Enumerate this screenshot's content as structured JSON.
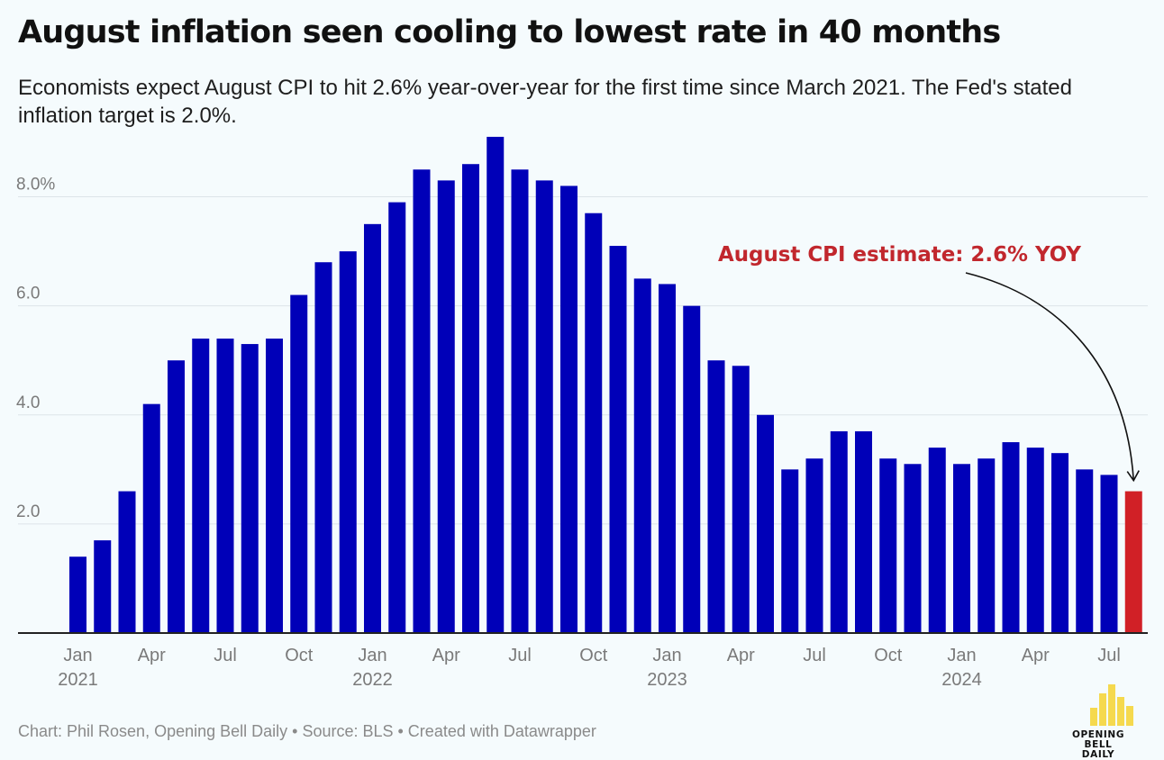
{
  "header": {
    "title": "August inflation seen cooling to lowest rate in 40 months",
    "subtitle": "Economists expect August CPI to hit 2.6% year-over-year for the first time since March 2021. The Fed's stated inflation target is 2.0%."
  },
  "footer": {
    "credit": "Chart: Phil Rosen, Opening Bell Daily • Source: BLS • Created with Datawrapper"
  },
  "logo": {
    "line1": "OPENING BELL",
    "line2": "DAILY",
    "color": "#f5d94e"
  },
  "colors": {
    "bar": "#0000b8",
    "highlight": "#d12026",
    "annotation": "#c1272d",
    "gridline": "#dde4e8",
    "tick_label": "#7a7a7a",
    "axis": "#222222"
  },
  "chart_data": {
    "type": "bar",
    "ylim": [
      0,
      9
    ],
    "yticks": [
      {
        "value": 2,
        "label": "2.0"
      },
      {
        "value": 4,
        "label": "4.0"
      },
      {
        "value": 6,
        "label": "6.0"
      },
      {
        "value": 8,
        "label": "8.0%"
      }
    ],
    "grid": true,
    "categories": [
      "Jan 2021",
      "Feb 2021",
      "Mar 2021",
      "Apr 2021",
      "May 2021",
      "Jun 2021",
      "Jul 2021",
      "Aug 2021",
      "Sep 2021",
      "Oct 2021",
      "Nov 2021",
      "Dec 2021",
      "Jan 2022",
      "Feb 2022",
      "Mar 2022",
      "Apr 2022",
      "May 2022",
      "Jun 2022",
      "Jul 2022",
      "Aug 2022",
      "Sep 2022",
      "Oct 2022",
      "Nov 2022",
      "Dec 2022",
      "Jan 2023",
      "Feb 2023",
      "Mar 2023",
      "Apr 2023",
      "May 2023",
      "Jun 2023",
      "Jul 2023",
      "Aug 2023",
      "Sep 2023",
      "Oct 2023",
      "Nov 2023",
      "Dec 2023",
      "Jan 2024",
      "Feb 2024",
      "Mar 2024",
      "Apr 2024",
      "May 2024",
      "Jun 2024",
      "Jul 2024",
      "Aug 2024"
    ],
    "values": [
      1.4,
      1.7,
      2.6,
      4.2,
      5.0,
      5.4,
      5.4,
      5.3,
      5.4,
      6.2,
      6.8,
      7.0,
      7.5,
      7.9,
      8.5,
      8.3,
      8.6,
      9.1,
      8.5,
      8.3,
      8.2,
      7.7,
      7.1,
      6.5,
      6.4,
      6.0,
      5.0,
      4.9,
      4.0,
      3.0,
      3.2,
      3.7,
      3.7,
      3.2,
      3.1,
      3.4,
      3.1,
      3.2,
      3.5,
      3.4,
      3.3,
      3.0,
      2.9,
      2.6
    ],
    "highlight_index": 43,
    "x_tick_labels": [
      {
        "index": 0,
        "month": "Jan",
        "year": "2021"
      },
      {
        "index": 3,
        "month": "Apr",
        "year": ""
      },
      {
        "index": 6,
        "month": "Jul",
        "year": ""
      },
      {
        "index": 9,
        "month": "Oct",
        "year": ""
      },
      {
        "index": 12,
        "month": "Jan",
        "year": "2022"
      },
      {
        "index": 15,
        "month": "Apr",
        "year": ""
      },
      {
        "index": 18,
        "month": "Jul",
        "year": ""
      },
      {
        "index": 21,
        "month": "Oct",
        "year": ""
      },
      {
        "index": 24,
        "month": "Jan",
        "year": "2023"
      },
      {
        "index": 27,
        "month": "Apr",
        "year": ""
      },
      {
        "index": 30,
        "month": "Jul",
        "year": ""
      },
      {
        "index": 33,
        "month": "Oct",
        "year": ""
      },
      {
        "index": 36,
        "month": "Jan",
        "year": "2024"
      },
      {
        "index": 39,
        "month": "Apr",
        "year": ""
      },
      {
        "index": 42,
        "month": "Jul",
        "year": ""
      }
    ],
    "annotation": {
      "text": "August CPI estimate: 2.6% YOY",
      "target_index": 43
    }
  }
}
